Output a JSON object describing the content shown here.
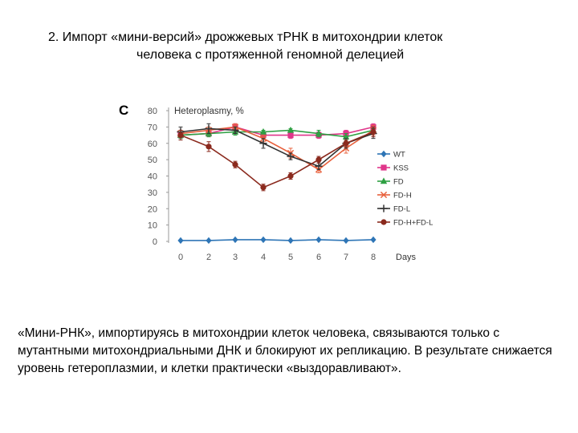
{
  "slide": {
    "title_line1": "2. Импорт «мини-версий» дрожжевых тРНК в митохондрии клеток",
    "title_line2": "человека с протяженной геномной делецией",
    "panel_label": "C",
    "caption": "«Мини-РНК», импортируясь в митохондрии клеток человека, связываются только с мутантными митохондриальными ДНК и блокируют их репликацию. В результате снижается уровень гетероплазмии, и клетки практически «выздоравливают»."
  },
  "chart_data": {
    "type": "line",
    "ylabel": "Heteroplasmy, %",
    "xlabel": "Days",
    "x": [
      0,
      2,
      3,
      4,
      5,
      6,
      7,
      8
    ],
    "y_ticks": [
      0,
      10,
      20,
      30,
      40,
      50,
      60,
      70,
      80
    ],
    "ylim": [
      0,
      80
    ],
    "legend_position": "right",
    "series": [
      {
        "name": "WT",
        "color": "#2e75b6",
        "marker": "diamond",
        "values": [
          0.5,
          0.5,
          1,
          1,
          0.5,
          1,
          0.5,
          1
        ],
        "errors": [
          0,
          0,
          0,
          0,
          0,
          0,
          0,
          0
        ]
      },
      {
        "name": "KSS",
        "color": "#e0368a",
        "marker": "square",
        "values": [
          65,
          66,
          70,
          65,
          65,
          65,
          66,
          70
        ],
        "errors": [
          2,
          2,
          2,
          2,
          2,
          2,
          2,
          2
        ]
      },
      {
        "name": "FD",
        "color": "#2ea043",
        "marker": "triangle",
        "values": [
          65,
          66,
          67,
          67,
          68,
          66,
          64,
          68
        ],
        "errors": [
          2,
          2,
          2,
          1,
          1,
          2,
          2,
          2
        ]
      },
      {
        "name": "FD-H",
        "color": "#e8603c",
        "marker": "cross",
        "values": [
          66,
          68,
          70,
          63,
          54,
          44,
          57,
          68
        ],
        "errors": [
          2,
          2,
          2,
          2,
          3,
          2,
          3,
          3
        ]
      },
      {
        "name": "FD-L",
        "color": "#333333",
        "marker": "plus",
        "values": [
          67,
          69,
          68,
          60,
          52,
          46,
          60,
          66
        ],
        "errors": [
          3,
          3,
          2,
          3,
          2,
          2,
          3,
          3
        ]
      },
      {
        "name": "FD-H+FD-L",
        "color": "#8b2a1e",
        "marker": "circle",
        "values": [
          65,
          58,
          47,
          33,
          40,
          50,
          60,
          67
        ],
        "errors": [
          3,
          3,
          2,
          2,
          2,
          2,
          2,
          3
        ]
      }
    ]
  }
}
